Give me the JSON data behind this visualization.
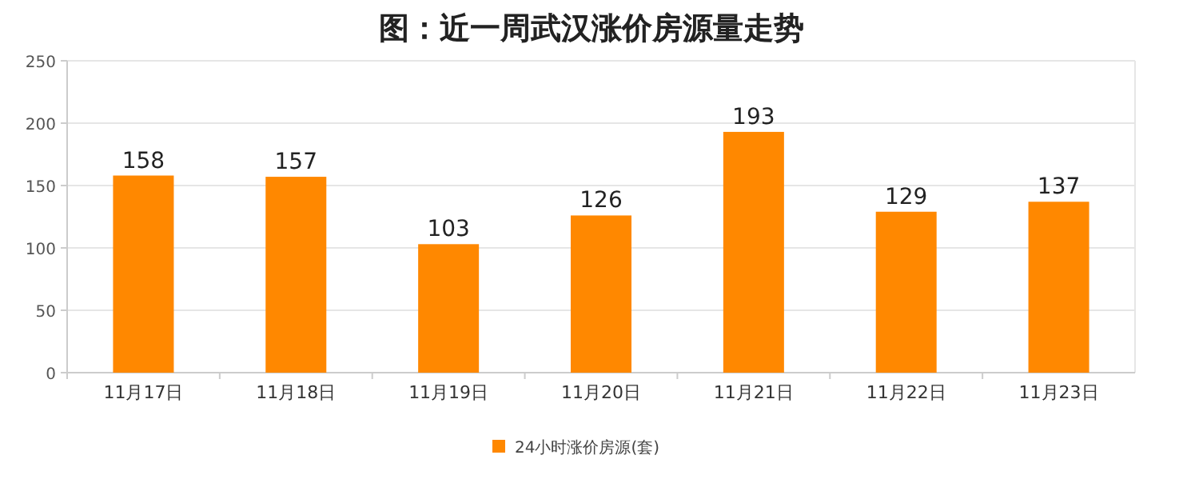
{
  "chart_data": {
    "type": "bar",
    "title": "图：近一周武汉涨价房源量走势",
    "categories": [
      "11月17日",
      "11月18日",
      "11月19日",
      "11月20日",
      "11月21日",
      "11月22日",
      "11月23日"
    ],
    "series": [
      {
        "name": "24小时涨价房源(套)",
        "color": "#ff8800",
        "values": [
          158,
          157,
          103,
          126,
          193,
          129,
          137
        ]
      }
    ],
    "ylim": [
      0,
      250
    ],
    "yticks": [
      0,
      50,
      100,
      150,
      200,
      250
    ],
    "grid": "y",
    "legend": "bottom",
    "data_labels": true
  }
}
